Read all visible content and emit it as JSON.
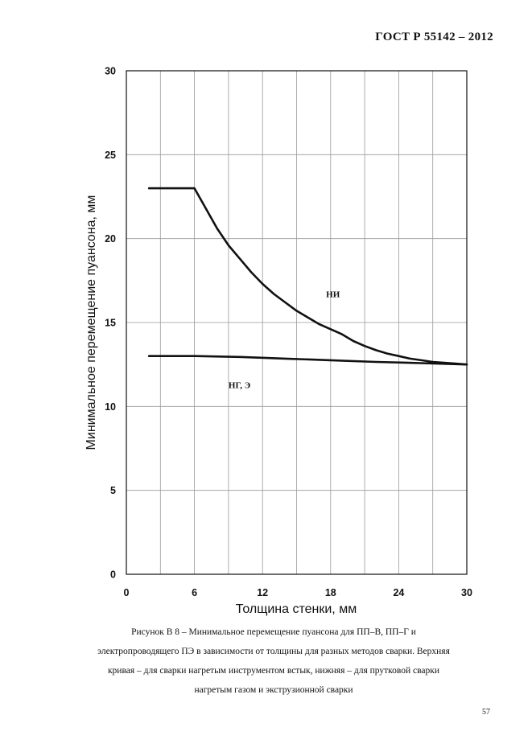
{
  "header": {
    "title": "ГОСТ Р  55142 – 2012"
  },
  "chart_data": {
    "type": "line",
    "title": "",
    "xlabel": "Толщина стенки, мм",
    "ylabel": "Минимальное перемещение пуансона, мм",
    "xlim": [
      0,
      30
    ],
    "ylim": [
      0,
      30
    ],
    "x_ticks": [
      "0",
      "6",
      "12",
      "18",
      "24",
      "30"
    ],
    "y_ticks": [
      "0",
      "5",
      "10",
      "15",
      "20",
      "25",
      "30"
    ],
    "grid": true,
    "series": [
      {
        "name": "НИ",
        "x": [
          2,
          6,
          7,
          8,
          9,
          10,
          11,
          12,
          13,
          14,
          15,
          16,
          17,
          18,
          19,
          20,
          21,
          22,
          23,
          24,
          25,
          26,
          27,
          28,
          29,
          30
        ],
        "y": [
          23,
          23,
          21.8,
          20.6,
          19.6,
          18.8,
          18.0,
          17.3,
          16.7,
          16.2,
          15.7,
          15.3,
          14.9,
          14.6,
          14.3,
          13.9,
          13.6,
          13.35,
          13.15,
          13.0,
          12.85,
          12.75,
          12.65,
          12.6,
          12.55,
          12.5
        ]
      },
      {
        "name": "НГ, Э",
        "x": [
          2,
          6,
          10,
          14,
          18,
          22,
          26,
          30
        ],
        "y": [
          13,
          13,
          12.95,
          12.85,
          12.75,
          12.65,
          12.58,
          12.5
        ]
      }
    ],
    "annotations": [
      {
        "text": "НИ",
        "x": 17.6,
        "y": 16.5
      },
      {
        "text": "НГ, Э",
        "x": 9.0,
        "y": 11.1
      }
    ]
  },
  "caption": {
    "lines": [
      "Рисунок В 8 – Минимальное перемещение пуансона  для ПП–В, ПП–Г  и",
      "электропроводящего ПЭ в зависимости от толщины для разных методов сварки. Верхняя",
      "кривая – для сварки нагретым инструментом встык, нижняя – для прутковой сварки",
      "нагретым газом и экструзионной сварки"
    ]
  },
  "page": {
    "number": "57"
  }
}
